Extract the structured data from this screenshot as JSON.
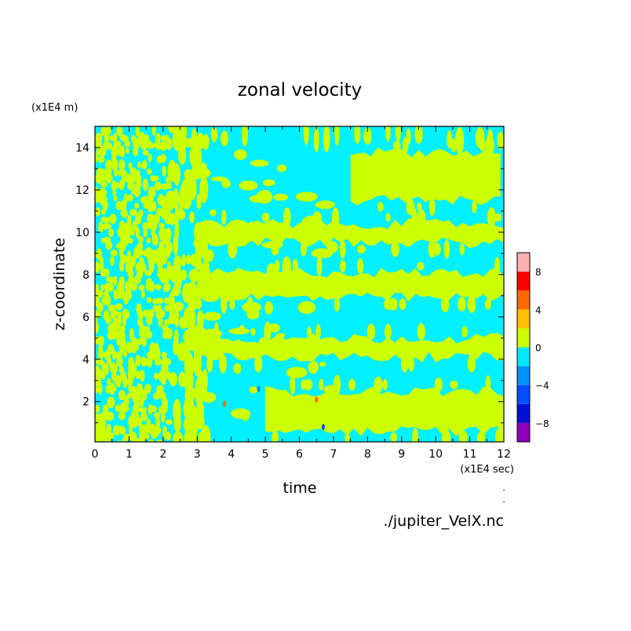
{
  "chart_data": {
    "type": "heatmap",
    "title": "zonal velocity",
    "xlabel": "time",
    "ylabel": "z-coordinate",
    "x_scale_note": "(x1E4 sec)",
    "y_scale_note": "(x1E4 m)",
    "source_label": "./jupiter_VelX.nc",
    "xlim": [
      0,
      12
    ],
    "ylim": [
      0.1,
      15
    ],
    "x_ticks": [
      "0",
      "1",
      "2",
      "3",
      "4",
      "5",
      "6",
      "7",
      "8",
      "9",
      "10",
      "11",
      "12"
    ],
    "y_ticks": [
      "2",
      "4",
      "6",
      "8",
      "10",
      "12",
      "14"
    ],
    "colorbar": {
      "levels": [
        -10,
        -8,
        -6,
        -4,
        -2,
        0,
        2,
        4,
        6,
        8,
        10
      ],
      "colors": [
        "#8f00bf",
        "#0010d0",
        "#0050ff",
        "#0090ff",
        "#00e8ff",
        "#ccff00",
        "#ffc000",
        "#ff6a00",
        "#ff0000",
        "#ffb0b0"
      ],
      "tick_labels": [
        "8",
        "4",
        "0",
        "−4",
        "−8"
      ],
      "tick_values": [
        8,
        4,
        0,
        -4,
        -8
      ]
    },
    "background_color": "#00f0ff",
    "positive_color": "#ccff00",
    "features": {
      "positive_bands": [
        {
          "t_start": 7.5,
          "t_end": 12,
          "z_low": 11.5,
          "z_high": 13.8
        },
        {
          "t_start": 3.0,
          "t_end": 12,
          "z_low": 9.5,
          "z_high": 10.4
        },
        {
          "t_start": 3.0,
          "t_end": 12,
          "z_low": 6.9,
          "z_high": 8.1
        },
        {
          "t_start": 3.0,
          "t_end": 12,
          "z_low": 4.1,
          "z_high": 5.0
        },
        {
          "t_start": 5.0,
          "t_end": 12,
          "z_low": 0.6,
          "z_high": 2.5
        }
      ],
      "turbulent_region_t_end": 2.2
    }
  }
}
